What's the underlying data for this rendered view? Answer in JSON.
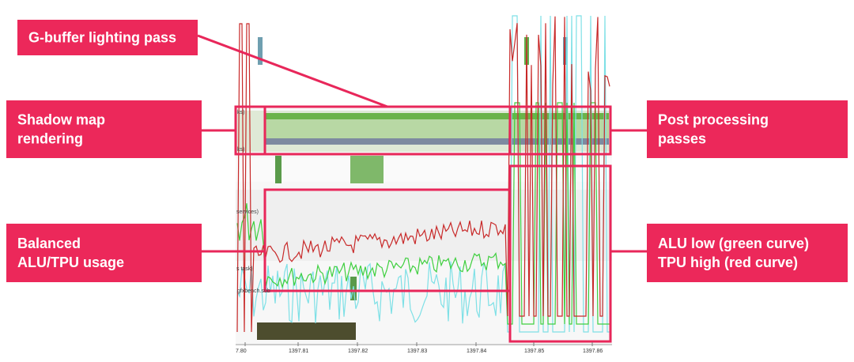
{
  "callouts": [
    {
      "lines": [
        "G-buffer lighting pass"
      ]
    },
    {
      "lines": [
        "Shadow map",
        "rendering"
      ]
    },
    {
      "lines": [
        "Post processing",
        "passes"
      ]
    },
    {
      "lines": [
        "Balanced",
        "ALU/TPU usage"
      ]
    },
    {
      "lines": [
        "ALU low (green curve)",
        "TPU high (red curve)"
      ]
    }
  ],
  "timeline": {
    "ticks": [
      "7.80",
      "1397.81",
      "1397.82",
      "1397.83",
      "1397.84",
      "1397.85",
      "1397.86"
    ],
    "track_labels": [
      "ks)",
      "ks)",
      "services)",
      "s task)",
      "gfxbench.sub"
    ]
  }
}
